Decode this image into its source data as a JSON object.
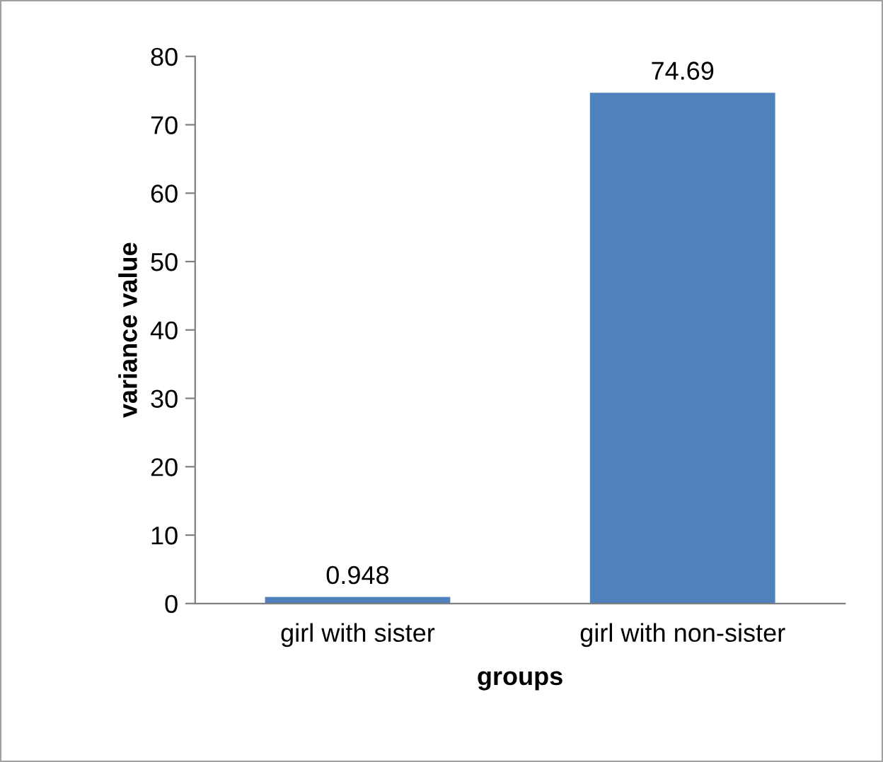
{
  "chart_data": {
    "type": "bar",
    "xlabel": "groups",
    "ylabel": "variance value",
    "categories": [
      "girl with sister",
      "girl with non-sister"
    ],
    "values": [
      0.948,
      74.69
    ],
    "color": "#4f81bd",
    "ylim": [
      0,
      80
    ],
    "yticks": [
      0,
      10,
      20,
      30,
      40,
      50,
      60,
      70,
      80
    ],
    "data_labels": true,
    "grid": false,
    "legend": false
  }
}
